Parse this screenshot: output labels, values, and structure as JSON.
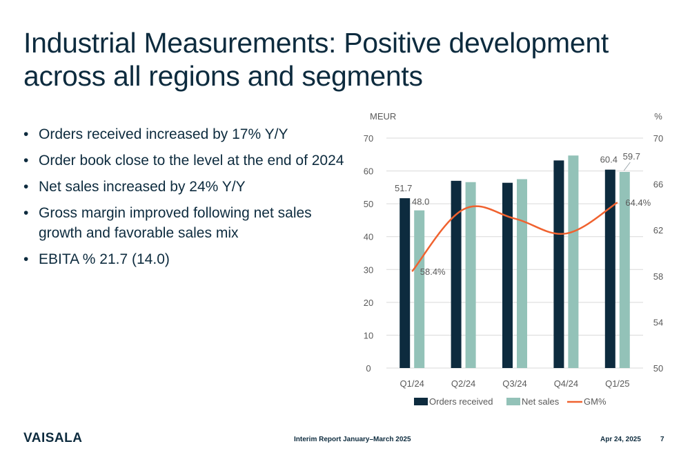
{
  "slide": {
    "title": "Industrial Measurements: Positive development across all regions and segments",
    "bullets": [
      "Orders received increased by 17% Y/Y",
      "Order book close to the level at the end of 2024",
      "Net sales increased by 24% Y/Y",
      "Gross margin improved following net sales growth and favorable sales mix",
      "EBITA % 21.7 (14.0)"
    ]
  },
  "footer": {
    "logo": "VAISALA",
    "report": "Interim Report January–March 2025",
    "date": "Apr 24, 2025",
    "page": "7"
  },
  "colors": {
    "orders": "#0d2b3e",
    "net_sales": "#93c2b8",
    "gm": "#f0622f",
    "grid": "#d9d9d9",
    "text": "#0d2b3e",
    "axis_text": "#595959"
  },
  "chart_data": {
    "type": "bar",
    "left_axis_unit": "MEUR",
    "right_axis_unit": "%",
    "categories": [
      "Q1/24",
      "Q2/24",
      "Q3/24",
      "Q4/24",
      "Q1/25"
    ],
    "ylim": [
      0,
      70
    ],
    "y_ticks": [
      0,
      10,
      20,
      30,
      40,
      50,
      60,
      70
    ],
    "y2lim": [
      50,
      70
    ],
    "y2_ticks": [
      50,
      54,
      58,
      62,
      66,
      70
    ],
    "series": [
      {
        "name": "Orders received",
        "type": "bar",
        "axis": "left",
        "values": [
          51.7,
          57.0,
          56.4,
          63.2,
          60.4
        ],
        "labels": [
          "51.7",
          "",
          "",
          "",
          "60.4"
        ]
      },
      {
        "name": "Net sales",
        "type": "bar",
        "axis": "left",
        "values": [
          48.0,
          56.6,
          57.5,
          64.7,
          59.7
        ],
        "labels": [
          "48.0",
          "",
          "",
          "",
          "59.7"
        ]
      },
      {
        "name": "GM%",
        "type": "line",
        "axis": "right",
        "values": [
          58.4,
          63.8,
          63.0,
          61.7,
          64.4
        ],
        "labels": [
          "58.4%",
          "",
          "",
          "",
          "64.4%"
        ]
      }
    ],
    "legend_position": "bottom",
    "grid": true
  }
}
